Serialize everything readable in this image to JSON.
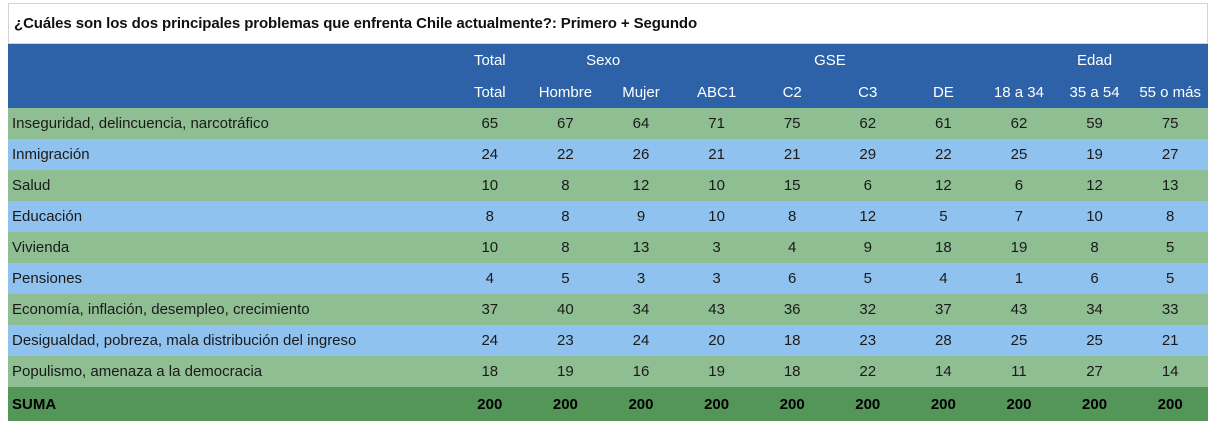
{
  "chart_data": {
    "type": "table",
    "title": "¿Cuáles son los dos principales problemas que enfrenta Chile actualmente?: Primero + Segundo",
    "group_headers": [
      {
        "label": "Total",
        "span": 1
      },
      {
        "label": "Sexo",
        "span": 2
      },
      {
        "label": "GSE",
        "span": 4
      },
      {
        "label": "Edad",
        "span": 3
      }
    ],
    "columns": [
      "Total",
      "Hombre",
      "Mujer",
      "ABC1",
      "C2",
      "C3",
      "DE",
      "18 a 34",
      "35 a 54",
      "55 o más"
    ],
    "rows": [
      {
        "label": "Inseguridad, delincuencia, narcotráfico",
        "values": [
          65,
          67,
          64,
          71,
          75,
          62,
          61,
          62,
          59,
          75
        ]
      },
      {
        "label": "Inmigración",
        "values": [
          24,
          22,
          26,
          21,
          21,
          29,
          22,
          25,
          19,
          27
        ]
      },
      {
        "label": "Salud",
        "values": [
          10,
          8,
          12,
          10,
          15,
          6,
          12,
          6,
          12,
          13
        ]
      },
      {
        "label": "Educación",
        "values": [
          8,
          8,
          9,
          10,
          8,
          12,
          5,
          7,
          10,
          8
        ]
      },
      {
        "label": "Vivienda",
        "values": [
          10,
          8,
          13,
          3,
          4,
          9,
          18,
          19,
          8,
          5
        ]
      },
      {
        "label": "Pensiones",
        "values": [
          4,
          5,
          3,
          3,
          6,
          5,
          4,
          1,
          6,
          5
        ]
      },
      {
        "label": "Economía, inflación, desempleo, crecimiento",
        "values": [
          37,
          40,
          34,
          43,
          36,
          32,
          37,
          43,
          34,
          33
        ]
      },
      {
        "label": "Desigualdad, pobreza, mala distribución del ingreso",
        "values": [
          24,
          23,
          24,
          20,
          18,
          23,
          28,
          25,
          25,
          21
        ]
      },
      {
        "label": "Populismo, amenaza a la democracia",
        "values": [
          18,
          19,
          16,
          19,
          18,
          22,
          14,
          11,
          27,
          14
        ]
      }
    ],
    "total_row": {
      "label": "SUMA",
      "values": [
        200,
        200,
        200,
        200,
        200,
        200,
        200,
        200,
        200,
        200
      ]
    },
    "layout_hints": {
      "row_striping": [
        "green",
        "blue"
      ],
      "first_row_stripe": "green"
    }
  },
  "colors": {
    "header_bg": "#2d62a8",
    "header_text": "#ffffff",
    "row_green": "#8fbe93",
    "row_blue": "#90c2ef",
    "total_row_bg": "#549558",
    "body_text": "#1a1a1a",
    "title_border": "#d3d3d3"
  }
}
